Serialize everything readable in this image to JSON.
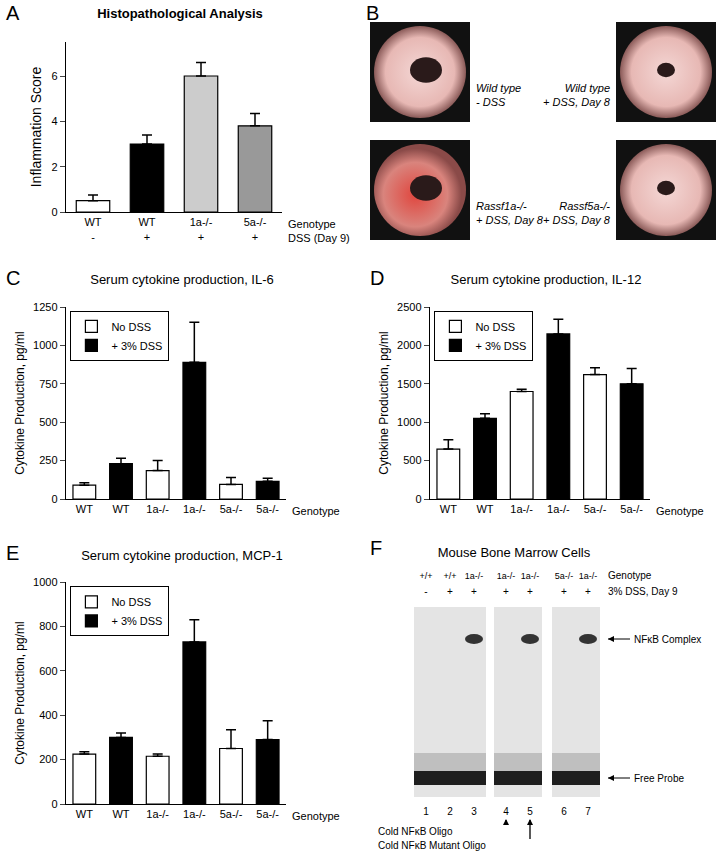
{
  "chart_data": [
    {
      "panel": "A",
      "type": "bar",
      "title": "Histopathological Analysis",
      "y_label": "Inflammation Score",
      "categories": [
        "WT",
        "WT",
        "1a-/-",
        "5a-/-"
      ],
      "second_row": [
        "-",
        "+",
        "+",
        "+"
      ],
      "row_labels": [
        "Genotype",
        "DSS (Day 9)"
      ],
      "values": [
        0.5,
        3.0,
        6.0,
        3.8
      ],
      "errors": [
        0.25,
        0.4,
        0.6,
        0.55
      ],
      "colors": [
        "#ffffff",
        "#000000",
        "#cccccc",
        "#999999"
      ],
      "ylim": [
        0,
        7.5
      ],
      "yticks": [
        0,
        2,
        4,
        6
      ],
      "grid": false
    },
    {
      "panel": "C",
      "type": "bar",
      "title": "Serum cytokine production, IL-6",
      "y_label": "Cytokine Production, pg/ml",
      "x_label": "Genotype",
      "categories": [
        "WT",
        "WT",
        "1a-/-",
        "1a-/-",
        "5a-/-",
        "5a-/-"
      ],
      "series": [
        {
          "name": "No DSS",
          "color": "#ffffff",
          "values": [
            90,
            null,
            185,
            null,
            95,
            null
          ],
          "errors": [
            15,
            null,
            65,
            null,
            45,
            null
          ]
        },
        {
          "name": "+ 3% DSS",
          "color": "#000000",
          "values": [
            null,
            230,
            null,
            890,
            null,
            115
          ],
          "errors": [
            null,
            35,
            null,
            260,
            null,
            20
          ]
        }
      ],
      "ylim": [
        0,
        1250
      ],
      "yticks": [
        0,
        250,
        500,
        750,
        1000,
        1250
      ],
      "legend": "top-left",
      "grid": false
    },
    {
      "panel": "D",
      "type": "bar",
      "title": "Serum cytokine production, IL-12",
      "y_label": "Cytokine Production, pg/ml",
      "x_label": "Genotype",
      "categories": [
        "WT",
        "WT",
        "1a-/-",
        "1a-/-",
        "5a-/-",
        "5a-/-"
      ],
      "series": [
        {
          "name": "No DSS",
          "color": "#ffffff",
          "values": [
            650,
            null,
            1400,
            null,
            1620,
            null
          ],
          "errors": [
            120,
            null,
            30,
            null,
            90,
            null
          ]
        },
        {
          "name": "+ 3% DSS",
          "color": "#000000",
          "values": [
            null,
            1050,
            null,
            2150,
            null,
            1500
          ],
          "errors": [
            null,
            60,
            null,
            190,
            null,
            200
          ]
        }
      ],
      "ylim": [
        0,
        2500
      ],
      "yticks": [
        0,
        500,
        1000,
        1500,
        2000,
        2500
      ],
      "legend": "top-left",
      "grid": false
    },
    {
      "panel": "E",
      "type": "bar",
      "title": "Serum cytokine production, MCP-1",
      "y_label": "Cytokine Production, pg/ml",
      "x_label": "Genotype",
      "categories": [
        "WT",
        "WT",
        "1a-/-",
        "1a-/-",
        "5a-/-",
        "5a-/-"
      ],
      "series": [
        {
          "name": "No DSS",
          "color": "#ffffff",
          "values": [
            225,
            null,
            215,
            null,
            250,
            null
          ],
          "errors": [
            10,
            null,
            10,
            null,
            85,
            null
          ]
        },
        {
          "name": "+ 3% DSS",
          "color": "#000000",
          "values": [
            null,
            300,
            null,
            730,
            null,
            290
          ],
          "errors": [
            null,
            20,
            null,
            100,
            null,
            85
          ]
        }
      ],
      "ylim": [
        0,
        1000
      ],
      "yticks": [
        0,
        200,
        400,
        600,
        800,
        1000
      ],
      "legend": "top-left",
      "grid": false
    }
  ],
  "photos": {
    "panel": "B",
    "images": [
      {
        "lines": [
          "Wild type",
          "- DSS"
        ],
        "bleeding": false
      },
      {
        "lines": [
          "Wild type",
          "+ DSS, Day 8"
        ],
        "bleeding": false
      },
      {
        "lines": [
          "Rassf1a-/-",
          "+ DSS, Day 8"
        ],
        "bleeding": true
      },
      {
        "lines": [
          "Rassf5a-/-",
          "+ DSS, Day 8"
        ],
        "bleeding": false
      }
    ]
  },
  "gel": {
    "panel": "F",
    "title": "Mouse Bone Marrow Cells",
    "row_labels": [
      "Genotype",
      "3% DSS, Day 9"
    ],
    "lanes": [
      {
        "number": "1",
        "genotype": "+/+",
        "dss": "-",
        "complex": false
      },
      {
        "number": "2",
        "genotype": "+/+",
        "dss": "+",
        "complex": false
      },
      {
        "number": "3",
        "genotype": "1a-/-",
        "dss": "+",
        "complex": true
      },
      {
        "number": "4",
        "genotype": "1a-/-",
        "dss": "+",
        "complex": false
      },
      {
        "number": "5",
        "genotype": "1a-/-",
        "dss": "+",
        "complex": true
      },
      {
        "number": "6",
        "genotype": "5a-/-",
        "dss": "+",
        "complex": false
      },
      {
        "number": "7",
        "genotype": "1a-/-",
        "dss": "+",
        "complex": true
      }
    ],
    "band_labels": [
      "NFκB Complex",
      "Free Probe"
    ],
    "notes": [
      {
        "lane": "4",
        "text": "Cold NFκB Oligo"
      },
      {
        "lane": "5",
        "text": "Cold NFκB Mutant Oligo"
      }
    ]
  }
}
